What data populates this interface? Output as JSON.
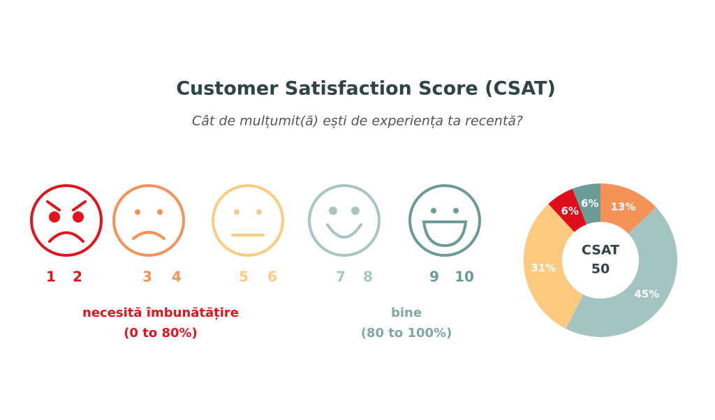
{
  "header": {
    "title": "Customer Satisfaction Score (CSAT)",
    "subtitle": "Cât de mulțumit(ă) ești de experiența ta recentă?"
  },
  "faces": [
    {
      "numbers": [
        1,
        2
      ],
      "color": "#e1141c"
    },
    {
      "numbers": [
        3,
        4
      ],
      "color": "#f69257"
    },
    {
      "numbers": [
        5,
        6
      ],
      "color": "#fccb80"
    },
    {
      "numbers": [
        7,
        8
      ],
      "color": "#a7c6c3"
    },
    {
      "numbers": [
        9,
        10
      ],
      "color": "#6b9b97"
    }
  ],
  "groups": [
    {
      "label": "necesită îmbunătățire",
      "range": "(0 to 80%)",
      "color": "#e1141c"
    },
    {
      "label": "bine",
      "range": "(80 to 100%)",
      "color": "#7fa8a4"
    }
  ],
  "chart_data": {
    "type": "donut",
    "center_title": "CSAT",
    "center_value": 50,
    "values": [
      13,
      45,
      31,
      6,
      6
    ],
    "value_labels": [
      "13%",
      "45%",
      "31%",
      "6%",
      "6%"
    ],
    "colors": [
      "#f69257",
      "#a3c4c1",
      "#fcca7e",
      "#e00d1b",
      "#6c9c98"
    ]
  }
}
